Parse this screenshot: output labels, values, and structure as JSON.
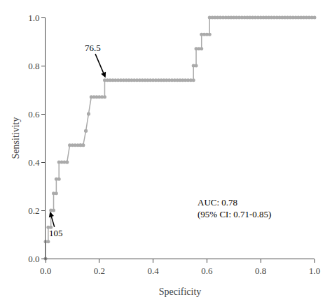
{
  "chart_data": {
    "type": "line",
    "xlabel": "Specificity",
    "ylabel": "Sensitivity",
    "xlim": [
      0.0,
      1.0
    ],
    "ylim": [
      0.0,
      1.0
    ],
    "xticks": [
      {
        "value": 0.0,
        "label": "0.0"
      },
      0.2,
      0.4,
      0.6,
      0.8,
      {
        "value": 1.0,
        "label": "1.0"
      }
    ],
    "yticks": [
      {
        "value": 0.0,
        "label": "0.0"
      },
      0.2,
      0.4,
      0.6,
      0.8,
      {
        "value": 1.0,
        "label": "1.0"
      }
    ],
    "grid": false,
    "color": "#aaaaaa",
    "marker": "circle",
    "annotations": [
      {
        "text": "AUC: 0.78\n(95% CI: 0.71-0.85)",
        "x": 0.56,
        "y": 0.21
      },
      {
        "text": "105",
        "x": 0.015,
        "y": 0.2,
        "text_x": 0.04,
        "text_y": 0.105
      },
      {
        "text": "76.5",
        "x": 0.225,
        "y": 0.745,
        "text_x": 0.175,
        "text_y": 0.875
      }
    ],
    "x": [
      0.0,
      0.0,
      0.01,
      0.01,
      0.02,
      0.02,
      0.03,
      0.03,
      0.04,
      0.04,
      0.05,
      0.05,
      0.06,
      0.07,
      0.08,
      0.08,
      0.09,
      0.1,
      0.11,
      0.12,
      0.13,
      0.13,
      0.14,
      0.14,
      0.15,
      0.15,
      0.16,
      0.16,
      0.17,
      0.18,
      0.19,
      0.2,
      0.21,
      0.22,
      0.22,
      0.23,
      0.24,
      0.25,
      0.26,
      0.27,
      0.28,
      0.29,
      0.3,
      0.31,
      0.32,
      0.33,
      0.34,
      0.35,
      0.36,
      0.37,
      0.38,
      0.39,
      0.4,
      0.41,
      0.42,
      0.43,
      0.44,
      0.45,
      0.46,
      0.47,
      0.48,
      0.49,
      0.5,
      0.51,
      0.52,
      0.53,
      0.54,
      0.55,
      0.55,
      0.56,
      0.56,
      0.57,
      0.58,
      0.58,
      0.59,
      0.6,
      0.61,
      0.61,
      0.62,
      0.63,
      0.64,
      0.65,
      0.66,
      0.67,
      0.68,
      0.69,
      0.7,
      0.71,
      0.72,
      0.73,
      0.74,
      0.75,
      0.76,
      0.77,
      0.78,
      0.79,
      0.8,
      0.81,
      0.82,
      0.83,
      0.84,
      0.85,
      0.86,
      0.87,
      0.88,
      0.89,
      0.9,
      0.91,
      0.92,
      0.93,
      0.94,
      0.95,
      0.96,
      0.97,
      0.98,
      0.99,
      1.0
    ],
    "values": [
      0.0,
      0.07,
      0.07,
      0.13,
      0.13,
      0.2,
      0.2,
      0.27,
      0.27,
      0.33,
      0.33,
      0.4,
      0.4,
      0.4,
      0.4,
      0.4,
      0.47,
      0.47,
      0.47,
      0.47,
      0.47,
      0.47,
      0.47,
      0.47,
      0.53,
      0.53,
      0.6,
      0.6,
      0.67,
      0.67,
      0.67,
      0.67,
      0.67,
      0.67,
      0.74,
      0.74,
      0.74,
      0.74,
      0.74,
      0.74,
      0.74,
      0.74,
      0.74,
      0.74,
      0.74,
      0.74,
      0.74,
      0.74,
      0.74,
      0.74,
      0.74,
      0.74,
      0.74,
      0.74,
      0.74,
      0.74,
      0.74,
      0.74,
      0.74,
      0.74,
      0.74,
      0.74,
      0.74,
      0.74,
      0.74,
      0.74,
      0.74,
      0.74,
      0.8,
      0.8,
      0.87,
      0.87,
      0.87,
      0.93,
      0.93,
      0.93,
      0.93,
      1.0,
      1.0,
      1.0,
      1.0,
      1.0,
      1.0,
      1.0,
      1.0,
      1.0,
      1.0,
      1.0,
      1.0,
      1.0,
      1.0,
      1.0,
      1.0,
      1.0,
      1.0,
      1.0,
      1.0,
      1.0,
      1.0,
      1.0,
      1.0,
      1.0,
      1.0,
      1.0,
      1.0,
      1.0,
      1.0,
      1.0,
      1.0,
      1.0,
      1.0,
      1.0,
      1.0,
      1.0,
      1.0,
      1.0,
      1.0
    ]
  }
}
